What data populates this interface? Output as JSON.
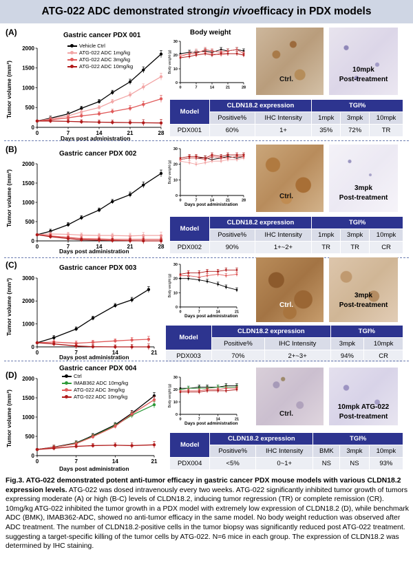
{
  "title": {
    "prefix": "ATG-022 ADC demonstrated strong ",
    "italic": "in vivo",
    "suffix": " efficacy in PDX models"
  },
  "colors": {
    "vehicle": "#000000",
    "low": "#f2a5a5",
    "mid": "#e05a5a",
    "high": "#b01a1a",
    "imab": "#2e9a3a",
    "header": "#2d348f"
  },
  "panels": {
    "A": {
      "letter": "(A)",
      "plot_title": "Gastric cancer PDX 001",
      "ylabel": "Tumor volume (mm³)",
      "xlabel": "Days post administration",
      "legend": [
        "Vehicle Ctrl",
        "ATG-022 ADC 1mg/kg",
        "ATG-022 ADC 3mg/kg",
        "ATG-022 ADC 10mg/kg"
      ],
      "bw_title": "Body weight",
      "photo1": "Ctrl.",
      "photo2_line1": "10mpk",
      "photo2_line2": "Post-treatment",
      "table": {
        "h_model": "Model",
        "h_cldn": "CLDN18.2 expression",
        "h_tgi": "TGI%",
        "sub": [
          "Positive%",
          "IHC Intensity",
          "1mpk",
          "3mpk",
          "10mpk"
        ],
        "row": [
          "PDX001",
          "60%",
          "1+",
          "35%",
          "72%",
          "TR"
        ]
      }
    },
    "B": {
      "letter": "(B)",
      "plot_title": "Gastric cancer PDX 002",
      "ylabel": "Tumor volume (mm³)",
      "xlabel": "Days post administration",
      "bw_ylabel": "Body weight (g)",
      "bw_xlabel": "Days post administration",
      "photo1": "Ctrl.",
      "photo2_line1": "3mpk",
      "photo2_line2": "Post-treatment",
      "table": {
        "h_model": "Model",
        "h_cldn": "CLDN18.2 expression",
        "h_tgi": "TGI%",
        "sub": [
          "Positive%",
          "IHC Intensity",
          "1mpk",
          "3mpk",
          "10mpk"
        ],
        "row": [
          "PDX002",
          "90%",
          "1+~2+",
          "TR",
          "TR",
          "CR"
        ]
      }
    },
    "C": {
      "letter": "(C)",
      "plot_title": "Gastric cancer PDX 003",
      "ylabel": "Tumor volume (mm³)",
      "xlabel": "Days post administration",
      "bw_ylabel": "Body weight (g)",
      "bw_xlabel": "Days post administration",
      "photo1": "Ctrl.",
      "photo2_line1": "3mpk",
      "photo2_line2": "Post-treatment",
      "table": {
        "h_model": "Model",
        "h_cldn": "CLDN18.2 expression",
        "h_tgi": "TGI%",
        "sub": [
          "Positive%",
          "IHC Intensity",
          "3mpk",
          "10mpk"
        ],
        "row": [
          "PDX003",
          "70%",
          "2+~3+",
          "94%",
          "CR"
        ]
      }
    },
    "D": {
      "letter": "(D)",
      "plot_title": "Gastric cancer PDX 004",
      "ylabel": "Tumor volume (mm³)",
      "xlabel": "Days post administration",
      "legend": [
        "Ctrl",
        "IMAB362 ADC 10mg/kg",
        "ATG-022 ADC 3mg/kg",
        "ATG-022 ADC 10mg/kg"
      ],
      "bw_ylabel": "Body weight (g)",
      "bw_xlabel": "Days post administration",
      "photo1": "Ctrl.",
      "photo2_line1": "10mpk ATG-022",
      "photo2_line2": "Post-treatment",
      "table": {
        "h_model": "Model",
        "h_cldn": "CLDN18.2 expression",
        "h_tgi": "TGI%",
        "sub": [
          "Positive%",
          "IHC Intensity",
          "BMK",
          "3mpk",
          "10mpk"
        ],
        "row": [
          "PDX004",
          "<5%",
          "0~1+",
          "NS",
          "NS",
          "93%"
        ]
      }
    }
  },
  "caption": {
    "bold": "Fig.3. ATG-022 demonstrated potent anti-tumor efficacy in gastric cancer PDX mouse models with various CLDN18.2 expression levels.",
    "body": " ATG-022 was dosed intravenously every two weeks. ATG-022 significantly inhibited tumor growth of tumors expressing moderate (A) or high (B-C) levels of CLDN18.2, inducing tumor regression (TR) or complete remission (CR). 10mg/kg ATG-022 inhibited the tumor growth in a PDX model with extremely low expression of CLDN18.2 (D), while benchmark ADC (BMK), IMAB362-ADC, showed no anti-tumor efficacy in the same model. No body weight reduction was observed after ADC treatment. The number of CLDN18.2-positive cells in the tumor biopsy was significantly reduced post ATG-022 treatment. suggesting a target-specific killing of the tumor cells by ATG-022. N=6 mice in each group. The expression of CLDN18.2 was determined by IHC staining."
  },
  "chart_data": [
    {
      "type": "line",
      "id": "A",
      "title": "Gastric cancer PDX 001",
      "xlabel": "Days post administration",
      "ylabel": "Tumor volume (mm³)",
      "xticks": [
        0,
        7,
        14,
        21,
        28
      ],
      "yticks": [
        0,
        500,
        1000,
        1500,
        2000
      ],
      "xlim": [
        0,
        28
      ],
      "ylim": [
        0,
        2000
      ],
      "x": [
        0,
        3,
        7,
        10,
        14,
        17,
        21,
        24,
        28
      ],
      "series": [
        {
          "name": "Vehicle Ctrl",
          "color": "#000000",
          "values": [
            160,
            230,
            340,
            480,
            650,
            880,
            1150,
            1450,
            1850
          ]
        },
        {
          "name": "ATG-022 ADC 1mg/kg",
          "color": "#f2a5a5",
          "values": [
            160,
            210,
            290,
            390,
            500,
            650,
            820,
            1020,
            1280
          ]
        },
        {
          "name": "ATG-022 ADC 3mg/kg",
          "color": "#e05a5a",
          "values": [
            160,
            190,
            240,
            290,
            340,
            400,
            480,
            580,
            720
          ]
        },
        {
          "name": "ATG-022 ADC 10mg/kg",
          "color": "#b01a1a",
          "values": [
            160,
            160,
            150,
            140,
            130,
            125,
            120,
            115,
            110
          ]
        }
      ]
    },
    {
      "type": "line",
      "id": "B",
      "title": "Gastric cancer PDX 002",
      "xlabel": "Days post administration",
      "ylabel": "Tumor volume (mm³)",
      "xticks": [
        0,
        7,
        14,
        21,
        28
      ],
      "yticks": [
        0,
        500,
        1000,
        1500,
        2000
      ],
      "xlim": [
        0,
        28
      ],
      "ylim": [
        0,
        2000
      ],
      "x": [
        0,
        3,
        7,
        10,
        14,
        17,
        21,
        24,
        28
      ],
      "series": [
        {
          "name": "Vehicle Ctrl",
          "color": "#000000",
          "values": [
            160,
            250,
            420,
            600,
            800,
            1020,
            1200,
            1450,
            1750
          ]
        },
        {
          "name": "ATG-022 ADC 1mg/kg",
          "color": "#f2a5a5",
          "values": [
            160,
            180,
            170,
            150,
            140,
            140,
            130,
            140,
            140
          ]
        },
        {
          "name": "ATG-022 ADC 3mg/kg",
          "color": "#e05a5a",
          "values": [
            160,
            130,
            90,
            60,
            50,
            40,
            40,
            40,
            40
          ]
        },
        {
          "name": "ATG-022 ADC 10mg/kg",
          "color": "#b01a1a",
          "values": [
            160,
            110,
            60,
            30,
            20,
            10,
            5,
            0,
            0
          ]
        }
      ]
    },
    {
      "type": "line",
      "id": "C",
      "title": "Gastric cancer PDX 003",
      "xlabel": "Days post administration",
      "ylabel": "Tumor volume (mm³)",
      "xticks": [
        0,
        7,
        14,
        21
      ],
      "yticks": [
        0,
        1000,
        2000,
        3000
      ],
      "xlim": [
        0,
        21
      ],
      "ylim": [
        0,
        3000
      ],
      "x": [
        0,
        3,
        7,
        10,
        14,
        17,
        20
      ],
      "series": [
        {
          "name": "Vehicle Ctrl",
          "color": "#000000",
          "values": [
            180,
            400,
            780,
            1250,
            1800,
            2050,
            2500
          ]
        },
        {
          "name": "ATG-022 ADC 3mg/kg",
          "color": "#e05a5a",
          "values": [
            180,
            210,
            160,
            200,
            260,
            300,
            330
          ]
        },
        {
          "name": "ATG-022 ADC 10mg/kg",
          "color": "#b01a1a",
          "values": [
            180,
            130,
            40,
            10,
            0,
            0,
            0
          ]
        }
      ]
    },
    {
      "type": "line",
      "id": "D",
      "title": "Gastric cancer PDX 004",
      "xlabel": "Days post administration",
      "ylabel": "Tumor volume (mm³)",
      "xticks": [
        0,
        7,
        14,
        21
      ],
      "yticks": [
        0,
        500,
        1000,
        1500,
        2000
      ],
      "xlim": [
        0,
        21
      ],
      "ylim": [
        0,
        2000
      ],
      "x": [
        0,
        3,
        7,
        10,
        14,
        17,
        21
      ],
      "series": [
        {
          "name": "Ctrl",
          "color": "#000000",
          "values": [
            160,
            220,
            330,
            520,
            800,
            1100,
            1550
          ]
        },
        {
          "name": "IMAB362 ADC 10mg/kg",
          "color": "#2e9a3a",
          "values": [
            160,
            210,
            320,
            500,
            780,
            1050,
            1320
          ]
        },
        {
          "name": "ATG-022 ADC 3mg/kg",
          "color": "#e05a5a",
          "values": [
            160,
            215,
            310,
            490,
            760,
            1080,
            1450
          ]
        },
        {
          "name": "ATG-022 ADC 10mg/kg",
          "color": "#b01a1a",
          "values": [
            160,
            190,
            240,
            260,
            270,
            260,
            280
          ]
        }
      ]
    },
    {
      "type": "line",
      "id": "A-bw",
      "title": "Body weight",
      "xlabel": "Days post administration",
      "ylabel": "Body weight (g)",
      "xticks": [
        0,
        7,
        14,
        21,
        28
      ],
      "yticks": [
        0,
        10,
        20,
        30
      ],
      "xlim": [
        0,
        28
      ],
      "ylim": [
        0,
        30
      ],
      "x": [
        0,
        4,
        7,
        11,
        14,
        18,
        21,
        25,
        28
      ],
      "series": [
        {
          "name": "Vehicle Ctrl",
          "color": "#000000",
          "values": [
            21,
            22,
            22,
            23,
            22,
            24,
            23,
            24,
            23
          ]
        },
        {
          "name": "ATG-022 ADC 1mg/kg",
          "color": "#f2a5a5",
          "values": [
            20,
            21,
            23,
            22,
            21,
            20,
            21,
            21,
            20
          ]
        },
        {
          "name": "ATG-022 ADC 3mg/kg",
          "color": "#e05a5a",
          "values": [
            19,
            21,
            21,
            24,
            23,
            22,
            23,
            24,
            21
          ]
        },
        {
          "name": "ATG-022 ADC 10mg/kg",
          "color": "#b01a1a",
          "values": [
            18,
            19,
            20,
            21,
            20,
            21,
            21,
            21,
            20
          ]
        }
      ]
    },
    {
      "type": "line",
      "id": "B-bw",
      "title": "",
      "xlabel": "Days post administration",
      "ylabel": "Body weight (g)",
      "xticks": [
        0,
        7,
        14,
        21,
        28
      ],
      "yticks": [
        0,
        10,
        20,
        30
      ],
      "xlim": [
        0,
        28
      ],
      "ylim": [
        0,
        30
      ],
      "x": [
        0,
        4,
        7,
        11,
        14,
        18,
        21,
        25,
        28
      ],
      "series": [
        {
          "name": "Vehicle Ctrl",
          "color": "#000000",
          "values": [
            23,
            24,
            24,
            24,
            23,
            24,
            25,
            24,
            25
          ]
        },
        {
          "name": "ATG-022 ADC 1mg/kg",
          "color": "#f2a5a5",
          "values": [
            22,
            21,
            20,
            21,
            22,
            22,
            23,
            23,
            24
          ]
        },
        {
          "name": "ATG-022 ADC 3mg/kg",
          "color": "#e05a5a",
          "values": [
            23,
            24,
            24,
            23,
            25,
            24,
            24,
            25,
            25
          ]
        },
        {
          "name": "ATG-022 ADC 10mg/kg",
          "color": "#b01a1a",
          "values": [
            24,
            25,
            25,
            24,
            26,
            25,
            26,
            26,
            26
          ]
        }
      ]
    },
    {
      "type": "line",
      "id": "C-bw",
      "title": "",
      "xlabel": "Days post administration",
      "ylabel": "Body weight (g)",
      "xticks": [
        0,
        7,
        14,
        21
      ],
      "yticks": [
        0,
        10,
        20,
        30
      ],
      "xlim": [
        0,
        21
      ],
      "ylim": [
        0,
        30
      ],
      "x": [
        0,
        3,
        7,
        10,
        14,
        17,
        21
      ],
      "series": [
        {
          "name": "Vehicle Ctrl",
          "color": "#000000",
          "values": [
            20,
            20,
            19,
            18,
            16,
            14,
            12
          ]
        },
        {
          "name": "ATG-022 ADC 3mg/kg",
          "color": "#e05a5a",
          "values": [
            22,
            22,
            21,
            22,
            23,
            22,
            23
          ]
        },
        {
          "name": "ATG-022 ADC 10mg/kg",
          "color": "#b01a1a",
          "values": [
            23,
            24,
            24,
            25,
            25,
            26,
            26
          ]
        }
      ]
    },
    {
      "type": "line",
      "id": "D-bw",
      "title": "",
      "xlabel": "Days post administration",
      "ylabel": "Body weight (g)",
      "xticks": [
        0,
        7,
        14,
        21
      ],
      "yticks": [
        0,
        10,
        20,
        30
      ],
      "xlim": [
        0,
        21
      ],
      "ylim": [
        0,
        30
      ],
      "x": [
        0,
        3,
        7,
        10,
        14,
        17,
        21
      ],
      "series": [
        {
          "name": "Ctrl",
          "color": "#000000",
          "values": [
            21,
            21,
            22,
            22,
            22,
            23,
            23
          ]
        },
        {
          "name": "IMAB362 ADC 10mg/kg",
          "color": "#2e9a3a",
          "values": [
            20,
            21,
            21,
            21,
            22,
            22,
            22
          ]
        },
        {
          "name": "ATG-022 ADC 3mg/kg",
          "color": "#e05a5a",
          "values": [
            19,
            19,
            19,
            20,
            20,
            21,
            21
          ]
        },
        {
          "name": "ATG-022 ADC 10mg/kg",
          "color": "#b01a1a",
          "values": [
            18,
            18,
            18,
            19,
            19,
            19,
            20
          ]
        }
      ]
    }
  ]
}
